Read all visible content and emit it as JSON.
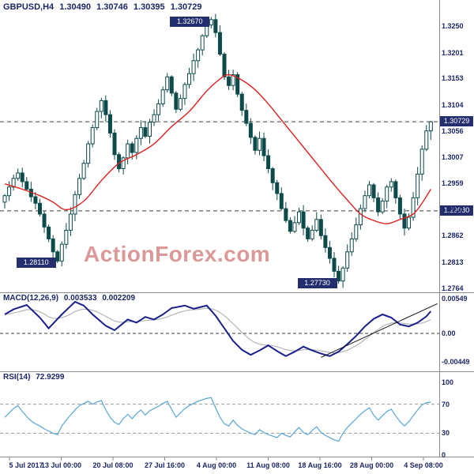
{
  "header": {
    "symbol": "GBPUSD,H4",
    "open": "1.30490",
    "high": "1.30746",
    "low": "1.30395",
    "close": "1.30729"
  },
  "watermark": "ActionForex.com",
  "indicator_labels": {
    "macd_name": "MACD(12,26,9)",
    "macd_main": "0.003533",
    "macd_signal": "0.002209",
    "rsi_name": "RSI(14)",
    "rsi_value": "72.9299"
  },
  "axes": {
    "price_labels": [
      "1.3250",
      "1.3201",
      "1.3153",
      "1.3104",
      "1.3056",
      "1.3007",
      "1.2959",
      "1.2910",
      "1.2862",
      "1.2813",
      "1.2764"
    ],
    "macd_labels": [
      "0.00549",
      "0.00",
      "-0.00449"
    ],
    "rsi_labels": [
      "100",
      "70",
      "30",
      "0"
    ],
    "time_labels": [
      "5 Jul 2017",
      "13 Jul 00:00",
      "20 Jul 08:00",
      "27 Jul 16:00",
      "4 Aug 00:00",
      "11 Aug 08:00",
      "18 Aug 16:00",
      "28 Aug 00:00",
      "4 Sep 08:00"
    ]
  },
  "colors": {
    "candle": "#0d4a4a",
    "candle_up_fill": "#ffffff",
    "ma": "#dd2020",
    "macd": "#1a1f8c",
    "signal": "#b5b5b5",
    "rsi": "#58a6d8",
    "axis_text": "#1c2666",
    "tag_bg": "#242e6e",
    "tag_text": "#ffffff",
    "watermark": "#d47f7f",
    "dash": "#3c3c3c",
    "grid": "#9a9a9a",
    "border": "#8a8a8a",
    "trendline": "#101010"
  },
  "chart_data": {
    "type": "candlestick",
    "symbol": "GBPUSD",
    "timeframe": "H4",
    "price": {
      "ylim": [
        1.276,
        1.3272
      ],
      "closes": [
        1.2936,
        1.2952,
        1.2968,
        1.2978,
        1.2962,
        1.2948,
        1.2934,
        1.2922,
        1.2902,
        1.2878,
        1.2856,
        1.2832,
        1.2815,
        1.2846,
        1.2872,
        1.2902,
        1.2938,
        1.2968,
        1.2996,
        1.3032,
        1.3062,
        1.3092,
        1.3112,
        1.3086,
        1.3052,
        1.3012,
        1.2986,
        1.3006,
        1.3032,
        1.3016,
        1.3042,
        1.3062,
        1.3046,
        1.3072,
        1.3086,
        1.3106,
        1.3132,
        1.3156,
        1.3126,
        1.3096,
        1.3116,
        1.3142,
        1.3162,
        1.3186,
        1.3206,
        1.3232,
        1.3252,
        1.3262,
        1.3238,
        1.3198,
        1.3156,
        1.314,
        1.316,
        1.3124,
        1.3094,
        1.307,
        1.3044,
        1.302,
        1.3042,
        1.301,
        1.2986,
        1.296,
        1.294,
        1.2912,
        1.289,
        1.287,
        1.2886,
        1.2906,
        1.2876,
        1.2856,
        1.2872,
        1.2892,
        1.2862,
        1.284,
        1.282,
        1.2796,
        1.2778,
        1.2802,
        1.2832,
        1.2856,
        1.2882,
        1.2912,
        1.2936,
        1.2956,
        1.2932,
        1.2906,
        1.2926,
        1.2952,
        1.2962,
        1.2932,
        1.2902,
        1.2876,
        1.2896,
        1.2932,
        1.2976,
        1.3022,
        1.3056,
        1.30729
      ],
      "ma_points": [
        [
          0,
          1.2958
        ],
        [
          4,
          1.2948
        ],
        [
          8,
          1.2936
        ],
        [
          11,
          1.2924
        ],
        [
          14,
          1.291
        ],
        [
          18,
          1.2926
        ],
        [
          22,
          1.2964
        ],
        [
          26,
          1.2996
        ],
        [
          30,
          1.3012
        ],
        [
          34,
          1.3032
        ],
        [
          38,
          1.3064
        ],
        [
          42,
          1.3092
        ],
        [
          46,
          1.313
        ],
        [
          49,
          1.3152
        ],
        [
          51,
          1.316
        ],
        [
          54,
          1.315
        ],
        [
          57,
          1.3132
        ],
        [
          60,
          1.3106
        ],
        [
          63,
          1.3076
        ],
        [
          66,
          1.3046
        ],
        [
          69,
          1.3016
        ],
        [
          72,
          1.2986
        ],
        [
          75,
          1.2956
        ],
        [
          78,
          1.2928
        ],
        [
          81,
          1.2902
        ],
        [
          84,
          1.289
        ],
        [
          87,
          1.2884
        ],
        [
          90,
          1.2892
        ],
        [
          93,
          1.2902
        ],
        [
          95,
          1.2922
        ],
        [
          97,
          1.2948
        ]
      ],
      "markers": [
        {
          "bar": 47,
          "price": 1.3267,
          "label": "1.32670",
          "kind": "high"
        },
        {
          "bar": 12,
          "price": 1.2811,
          "label": "1.28110",
          "kind": "low"
        },
        {
          "bar": 76,
          "price": 1.2773,
          "label": "1.27730",
          "kind": "low"
        },
        {
          "bar": 97,
          "price": 1.30746,
          "label": "",
          "kind": "high"
        },
        {
          "bar": 97,
          "price": 1.30395,
          "label": "",
          "kind": "low"
        }
      ],
      "hlines": [
        {
          "price": 1.30729,
          "label": "1.30729"
        },
        {
          "price": 1.2908,
          "label": "1.29080"
        }
      ]
    },
    "macd": {
      "ylim": [
        -0.0055,
        0.0055
      ],
      "signal_ema": 9,
      "points": [
        [
          0,
          0.003
        ],
        [
          2,
          0.0038
        ],
        [
          5,
          0.0045
        ],
        [
          8,
          0.0025
        ],
        [
          10,
          0.0008
        ],
        [
          13,
          0.003
        ],
        [
          16,
          0.005
        ],
        [
          18,
          0.0044
        ],
        [
          20,
          0.003
        ],
        [
          23,
          0.0012
        ],
        [
          25,
          0.0005
        ],
        [
          28,
          0.0022
        ],
        [
          30,
          0.0017
        ],
        [
          32,
          0.0026
        ],
        [
          34,
          0.0022
        ],
        [
          36,
          0.003
        ],
        [
          38,
          0.004
        ],
        [
          41,
          0.0044
        ],
        [
          43,
          0.0039
        ],
        [
          46,
          0.0044
        ],
        [
          48,
          0.0028
        ],
        [
          50,
          0.0008
        ],
        [
          52,
          -0.0012
        ],
        [
          54,
          -0.0026
        ],
        [
          56,
          -0.0034
        ],
        [
          58,
          -0.0027
        ],
        [
          60,
          -0.0019
        ],
        [
          62,
          -0.0028
        ],
        [
          64,
          -0.0036
        ],
        [
          66,
          -0.0029
        ],
        [
          68,
          -0.0021
        ],
        [
          70,
          -0.0027
        ],
        [
          72,
          -0.0032
        ],
        [
          74,
          -0.0036
        ],
        [
          76,
          -0.0029
        ],
        [
          78,
          -0.0017
        ],
        [
          80,
          -0.0004
        ],
        [
          82,
          0.0011
        ],
        [
          84,
          0.0023
        ],
        [
          86,
          0.003
        ],
        [
          88,
          0.0025
        ],
        [
          90,
          0.0014
        ],
        [
          92,
          0.0011
        ],
        [
          94,
          0.0017
        ],
        [
          96,
          0.0027
        ],
        [
          97,
          0.0035
        ]
      ],
      "trendline": {
        "from": [
          72,
          -0.0038
        ],
        "to": [
          98.5,
          0.0047
        ]
      }
    },
    "rsi": {
      "ylim": [
        0,
        100
      ],
      "guides": [
        70,
        30
      ],
      "values": [
        52,
        58,
        64,
        68,
        60,
        53,
        47,
        43,
        40,
        36,
        33,
        30,
        28,
        40,
        48,
        55,
        62,
        68,
        71,
        74,
        70,
        73,
        75,
        62,
        52,
        45,
        42,
        50,
        56,
        50,
        57,
        62,
        55,
        61,
        64,
        67,
        71,
        74,
        63,
        52,
        58,
        64,
        68,
        71,
        74,
        76,
        78,
        79,
        65,
        52,
        43,
        40,
        48,
        41,
        36,
        33,
        30,
        28,
        35,
        31,
        28,
        26,
        24,
        30,
        27,
        25,
        32,
        38,
        31,
        28,
        34,
        39,
        31,
        27,
        24,
        21,
        19,
        30,
        38,
        44,
        50,
        56,
        61,
        65,
        55,
        48,
        54,
        60,
        63,
        54,
        46,
        40,
        46,
        54,
        62,
        69,
        72,
        72.93
      ]
    }
  }
}
